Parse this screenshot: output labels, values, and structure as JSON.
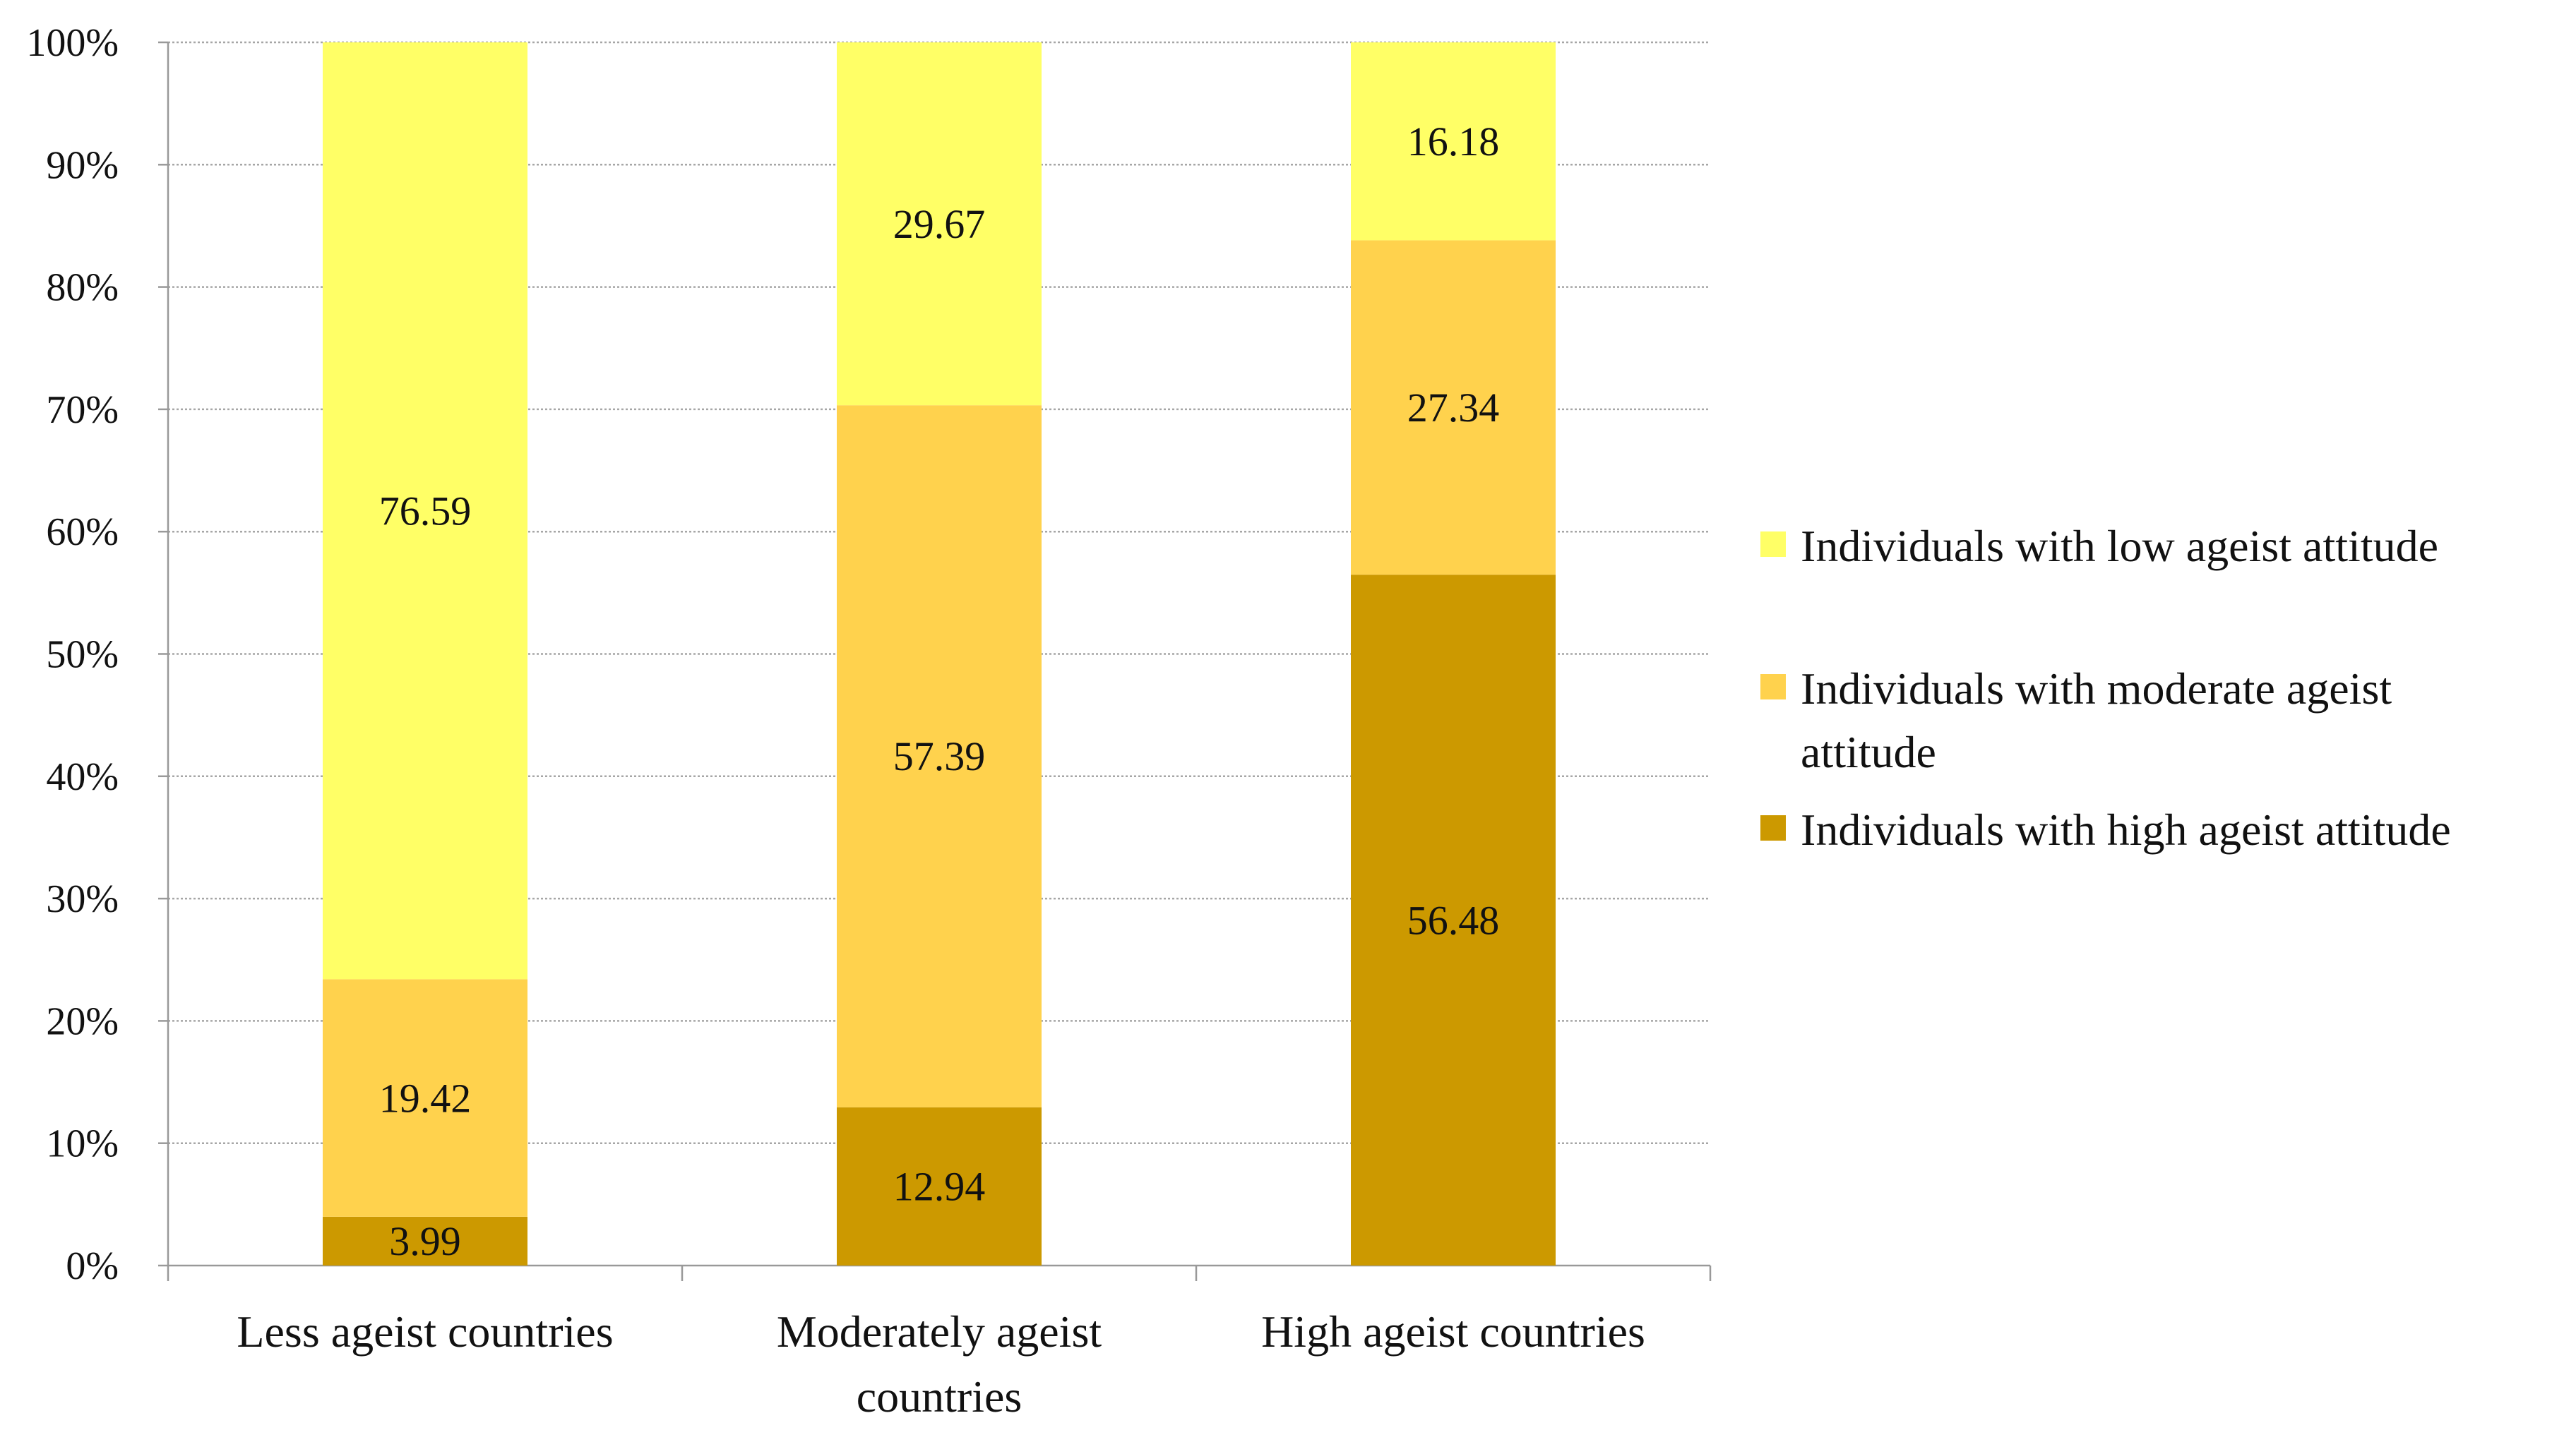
{
  "chart_data": {
    "type": "bar",
    "stacked": true,
    "title": "",
    "xlabel": "",
    "ylabel": "",
    "ylim": [
      0,
      100
    ],
    "yticks": [
      "0%",
      "10%",
      "20%",
      "30%",
      "40%",
      "50%",
      "60%",
      "70%",
      "80%",
      "90%",
      "100%"
    ],
    "categories": [
      [
        "Less ageist countries"
      ],
      [
        "Moderately ageist",
        "countries"
      ],
      [
        "High ageist countries"
      ]
    ],
    "series": [
      {
        "name": "Individuals with high ageist attitude",
        "legend_lines": [
          "Individuals with high ageist attitude"
        ],
        "color": "#CC9900",
        "values": [
          3.99,
          12.94,
          56.48
        ],
        "labels": [
          "3.99",
          "12.94",
          "56.48"
        ]
      },
      {
        "name": "Individuals with moderate ageist attitude",
        "legend_lines": [
          "Individuals with moderate ageist",
          "attitude"
        ],
        "color": "#FFD24D",
        "values": [
          19.42,
          57.39,
          27.34
        ],
        "labels": [
          "19.42",
          "57.39",
          "27.34"
        ]
      },
      {
        "name": "Individuals with low ageist attitude",
        "legend_lines": [
          "Individuals with low ageist attitude"
        ],
        "color": "#FFFF66",
        "values": [
          76.59,
          29.67,
          16.18
        ],
        "labels": [
          "76.59",
          "29.67",
          "16.18"
        ]
      }
    ],
    "legend_order": [
      "Individuals with low ageist attitude",
      "Individuals with moderate ageist attitude",
      "Individuals with high ageist attitude"
    ],
    "legend_position": "right",
    "grid": true,
    "gridline_style": "dotted",
    "axis_color": "#999999",
    "grid_color": "#a6a6a6"
  }
}
